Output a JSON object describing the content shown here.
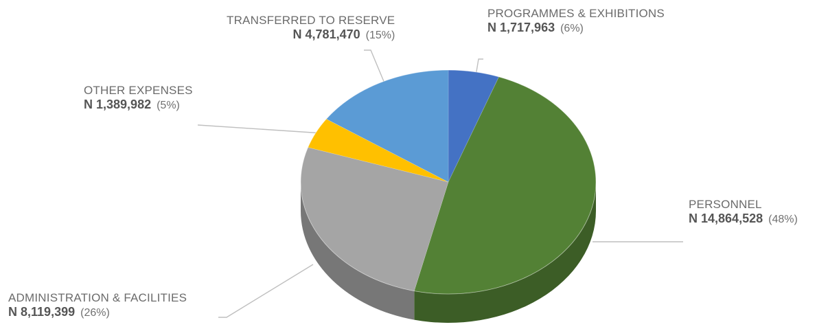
{
  "chart_data": {
    "type": "pie",
    "title": "",
    "currency_prefix": "N",
    "slices": [
      {
        "label": "PROGRAMMES & EXHIBITIONS",
        "value": 1717963,
        "amount_text": "1,717,963",
        "percent_text": "(6%)",
        "color": "#4472c4"
      },
      {
        "label": "PERSONNEL",
        "value": 14864528,
        "amount_text": "14,864,528",
        "percent_text": "(48%)",
        "color": "#538135"
      },
      {
        "label": "ADMINISTRATION & FACILITIES",
        "value": 8119399,
        "amount_text": "8,119,399",
        "percent_text": "(26%)",
        "color": "#a5a5a5"
      },
      {
        "label": "OTHER EXPENSES",
        "value": 1389982,
        "amount_text": "1,389,982",
        "percent_text": "(5%)",
        "color": "#ffc000"
      },
      {
        "label": "TRANSFERRED TO RESERVE",
        "value": 4781470,
        "amount_text": "4,781,470",
        "percent_text": "(15%)",
        "color": "#5b9bd5"
      }
    ]
  }
}
